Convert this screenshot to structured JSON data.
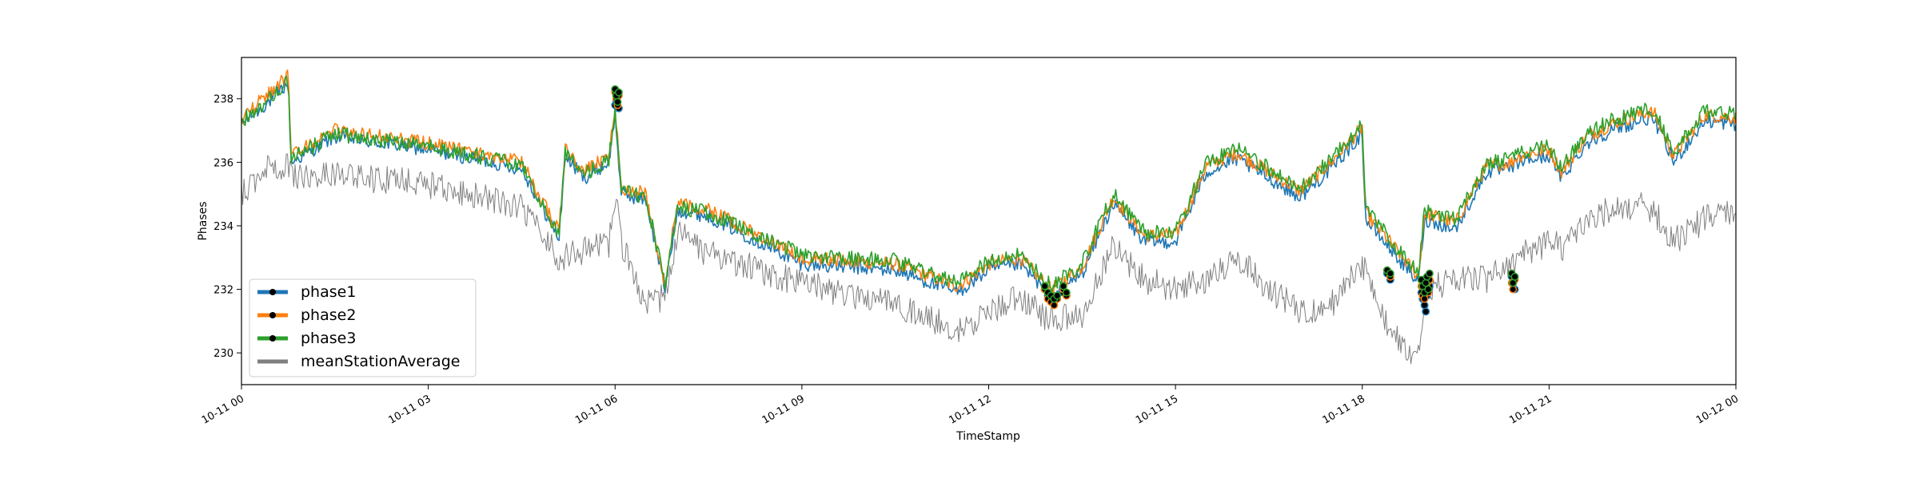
{
  "chart_data": {
    "type": "line",
    "title": "",
    "xlabel": "TimeStamp",
    "ylabel": "Phases",
    "x_range": [
      "10-11 00",
      "10-12 00"
    ],
    "ylim": [
      229.0,
      239.3
    ],
    "x_ticks": [
      "10-11 00",
      "10-11 03",
      "10-11 06",
      "10-11 09",
      "10-11 12",
      "10-11 15",
      "10-11 18",
      "10-11 21",
      "10-12 00"
    ],
    "y_ticks": [
      "230",
      "232",
      "234",
      "236",
      "238"
    ],
    "grid": false,
    "legend_position": "lower-left",
    "sampled_times_hours": [
      0,
      0.5,
      0.75,
      0.8,
      1.5,
      3.0,
      4.5,
      5.1,
      5.2,
      5.5,
      5.9,
      6.0,
      6.1,
      6.5,
      6.8,
      7.0,
      7.5,
      9.0,
      10.5,
      11.5,
      12.0,
      12.5,
      13.0,
      13.5,
      14.0,
      14.5,
      15.0,
      15.5,
      16.0,
      16.5,
      17.0,
      17.5,
      18.0,
      18.05,
      18.4,
      18.9,
      19.0,
      19.5,
      20.0,
      20.4,
      20.5,
      21.0,
      21.2,
      21.6,
      22.0,
      22.6,
      22.7,
      23.0,
      23.5,
      24.0
    ],
    "series": [
      {
        "name": "phase1",
        "color": "#1f77b4",
        "values": [
          237.2,
          238.0,
          238.5,
          236.0,
          236.8,
          236.4,
          235.8,
          233.6,
          236.2,
          235.5,
          236.0,
          237.5,
          235.0,
          234.8,
          232.0,
          234.5,
          234.3,
          232.8,
          232.6,
          231.9,
          232.6,
          232.8,
          231.8,
          232.5,
          234.7,
          233.5,
          233.5,
          235.7,
          236.1,
          235.5,
          234.9,
          235.8,
          236.9,
          234.2,
          233.4,
          232.2,
          234.2,
          233.9,
          235.7,
          235.8,
          236.0,
          236.2,
          235.5,
          236.6,
          237.0,
          237.4,
          237.3,
          236.0,
          237.3,
          237.2
        ]
      },
      {
        "name": "phase2",
        "color": "#ff7f0e",
        "values": [
          237.4,
          238.3,
          238.7,
          236.2,
          237.0,
          236.6,
          236.0,
          233.8,
          236.4,
          235.7,
          236.2,
          237.7,
          235.2,
          235.0,
          232.2,
          234.7,
          234.5,
          233.0,
          232.8,
          232.1,
          232.8,
          233.0,
          232.0,
          232.7,
          234.9,
          233.7,
          233.7,
          235.9,
          236.3,
          235.7,
          235.1,
          236.0,
          237.1,
          234.4,
          233.6,
          232.4,
          234.4,
          234.1,
          235.9,
          236.0,
          236.2,
          236.4,
          235.7,
          236.8,
          237.2,
          237.6,
          237.5,
          236.2,
          237.5,
          237.4
        ]
      },
      {
        "name": "phase3",
        "color": "#2ca02c",
        "values": [
          237.3,
          238.1,
          238.6,
          236.1,
          236.9,
          236.5,
          235.9,
          233.7,
          236.3,
          235.6,
          236.1,
          237.6,
          235.1,
          234.9,
          232.1,
          234.6,
          234.4,
          233.1,
          232.9,
          232.2,
          232.9,
          233.1,
          232.1,
          232.8,
          235.0,
          233.8,
          233.8,
          236.0,
          236.4,
          235.8,
          235.2,
          236.1,
          237.2,
          234.5,
          233.7,
          232.5,
          234.5,
          234.2,
          236.0,
          236.1,
          236.3,
          236.5,
          235.8,
          236.9,
          237.3,
          237.7,
          237.6,
          236.3,
          237.6,
          237.5
        ]
      },
      {
        "name": "meanStationAverage",
        "color": "#808080",
        "values": [
          235.0,
          236.0,
          235.8,
          235.6,
          235.6,
          235.3,
          234.6,
          233.0,
          233.0,
          233.2,
          233.4,
          235.0,
          233.4,
          231.5,
          231.8,
          233.8,
          233.1,
          232.2,
          231.5,
          230.7,
          231.2,
          231.8,
          231.0,
          231.2,
          233.4,
          232.3,
          232.0,
          232.3,
          233.0,
          232.0,
          231.3,
          231.5,
          232.8,
          232.6,
          230.8,
          229.8,
          232.0,
          232.3,
          232.3,
          232.8,
          233.0,
          233.5,
          233.3,
          234.0,
          234.6,
          234.6,
          234.4,
          233.5,
          234.2,
          234.5
        ]
      }
    ],
    "anomalies": {
      "times_hours": [
        6.0,
        6.02,
        6.04,
        6.06,
        12.9,
        12.95,
        13.0,
        13.05,
        13.1,
        13.2,
        13.25,
        18.4,
        18.45,
        18.95,
        18.97,
        19.0,
        19.02,
        19.04,
        19.06,
        19.08,
        20.4,
        20.42,
        20.45
      ],
      "phase1": [
        237.8,
        237.9,
        238.2,
        237.7,
        232.0,
        231.8,
        231.7,
        231.6,
        231.7,
        231.9,
        231.8,
        232.5,
        232.3,
        231.9,
        231.7,
        231.5,
        231.3,
        231.8,
        232.0,
        232.1,
        232.4,
        232.2,
        232.0
      ],
      "phase2": [
        238.2,
        238.0,
        237.8,
        238.1,
        232.0,
        231.7,
        231.6,
        231.5,
        231.7,
        232.0,
        231.8,
        232.6,
        232.4,
        232.1,
        231.8,
        231.7,
        232.0,
        232.2,
        231.9,
        232.3,
        232.2,
        232.0,
        232.3
      ],
      "phase3": [
        238.3,
        238.1,
        237.9,
        238.2,
        232.1,
        231.9,
        231.8,
        231.7,
        231.8,
        232.1,
        231.9,
        232.6,
        232.5,
        232.3,
        232.1,
        231.9,
        232.2,
        232.4,
        232.0,
        232.5,
        232.5,
        232.2,
        232.4
      ]
    }
  }
}
